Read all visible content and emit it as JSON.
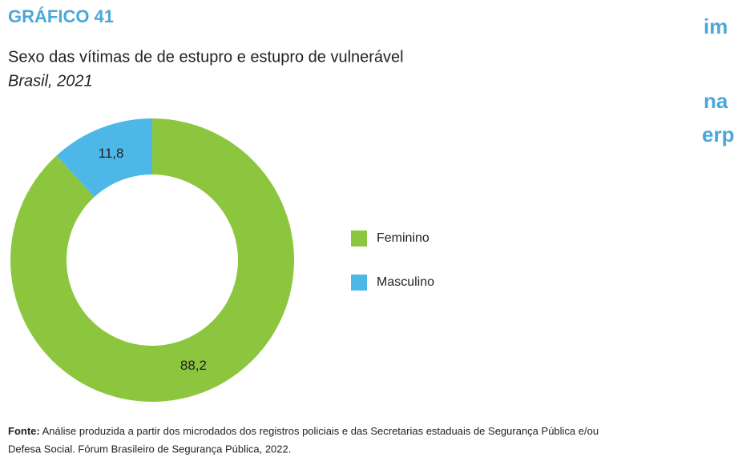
{
  "chart_data": {
    "type": "donut",
    "header": "GRÁFICO 41",
    "title": "Sexo das vítimas de de estupro e estupro de vulnerável",
    "subtitle": "Brasil, 2021",
    "categories": [
      "Feminino",
      "Masculino"
    ],
    "values": [
      88.2,
      11.8
    ],
    "value_labels": [
      "88,2",
      "11,8"
    ],
    "colors": [
      "#8cc63f",
      "#4db8e8"
    ],
    "legend": "right",
    "source_label": "Fonte:",
    "source_lines": [
      "Análise produzida a partir dos microdados dos registros policiais e das Secretarias estaduais de Segurança Pública e/ou",
      "Defesa Social. Fórum Brasileiro de Segurança Pública, 2022."
    ],
    "side_fragments": [
      "im",
      "na",
      "erp"
    ]
  }
}
